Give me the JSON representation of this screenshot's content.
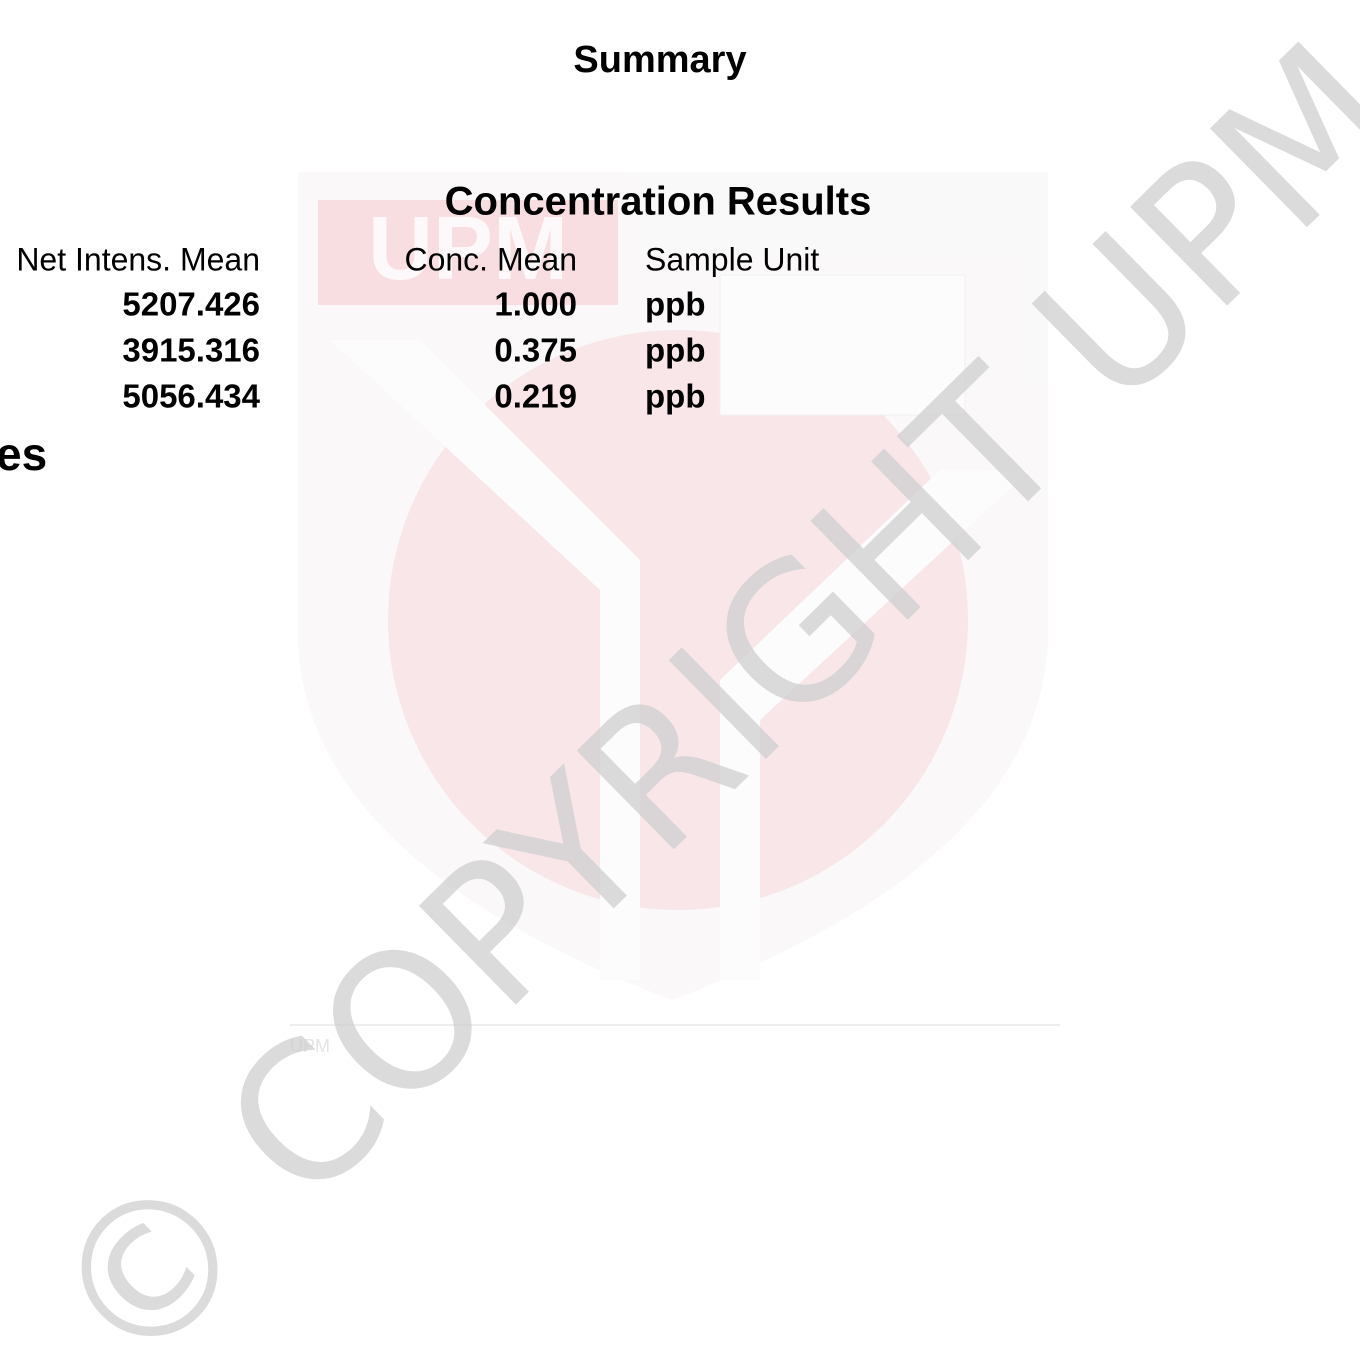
{
  "header": {
    "title": "Summary",
    "section_fragment": "es"
  },
  "table": {
    "title": "Concentration Results",
    "columns": [
      "Net Intens. Mean",
      "Conc. Mean",
      "Sample Unit"
    ],
    "rows": [
      [
        "5207.426",
        "1.000",
        "ppb"
      ],
      [
        "3915.316",
        "0.375",
        "ppb"
      ],
      [
        "5056.434",
        "0.219",
        "ppb"
      ]
    ]
  },
  "watermark": {
    "text": "© COPYRIGHT UPM",
    "logo_text": "UPM",
    "footer_text": "UPM"
  }
}
